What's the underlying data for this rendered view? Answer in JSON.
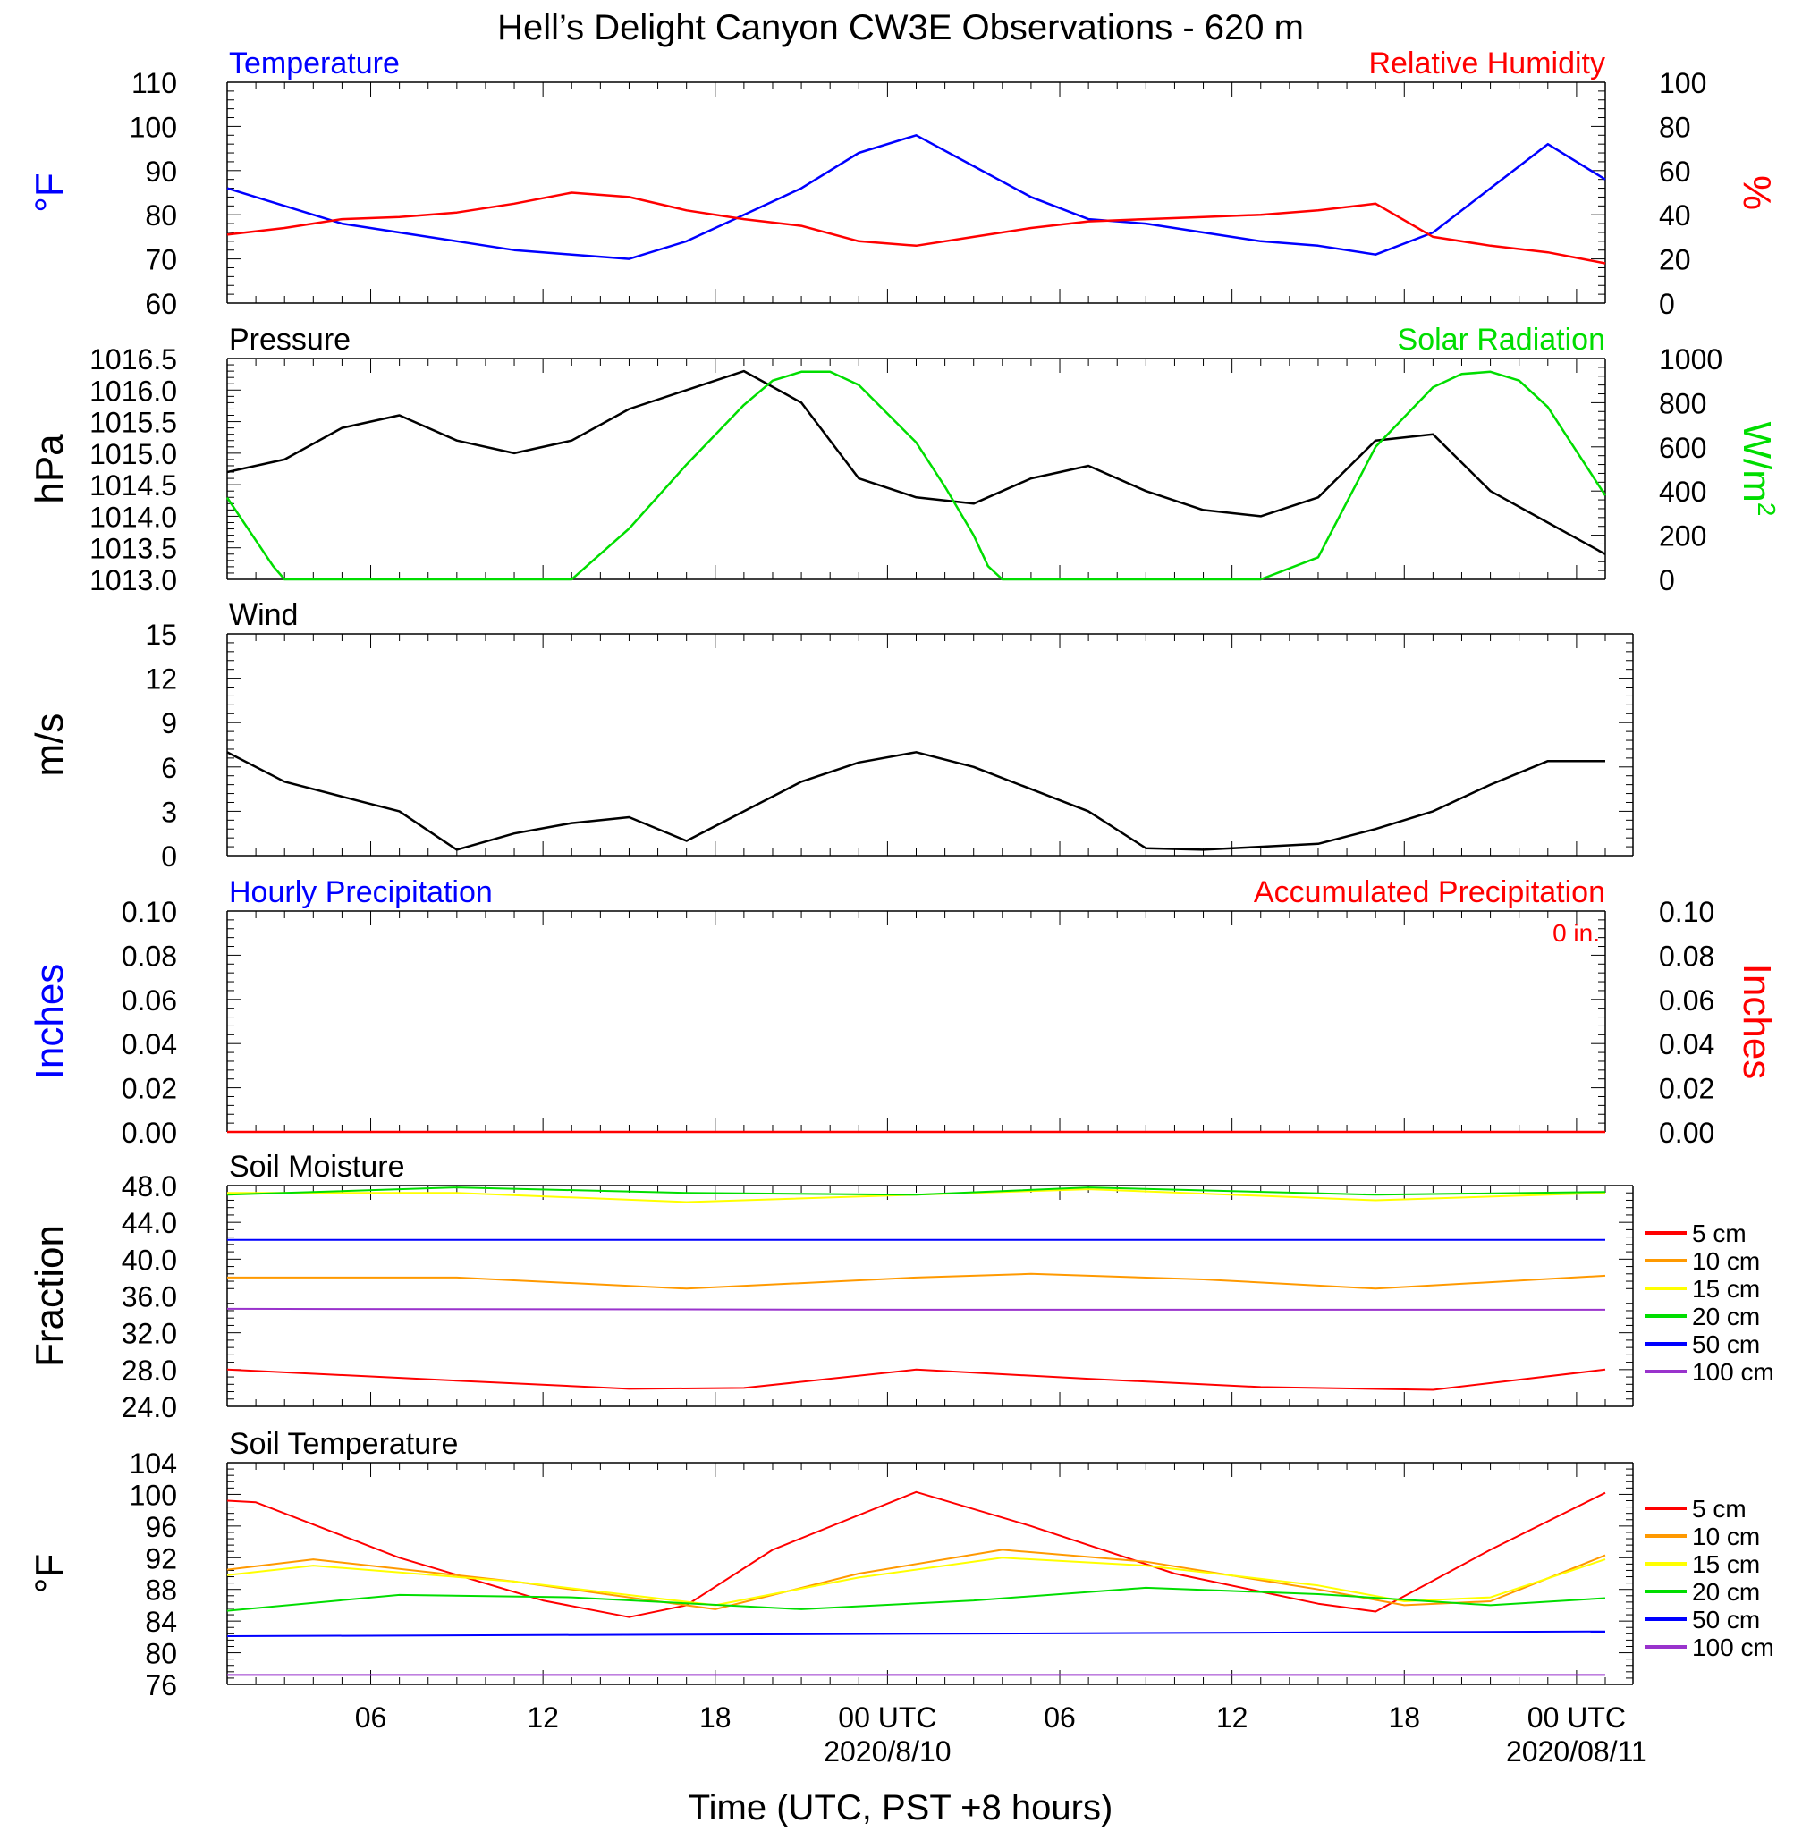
{
  "page_title": "Hell’s Delight Canyon CW3E Observations - 620 m",
  "x_axis": {
    "label": "Time (UTC, PST +8 hours)",
    "hours_range": [
      0,
      48
    ],
    "ticks": [
      {
        "hour": 5,
        "label": "06"
      },
      {
        "hour": 11,
        "label": "12"
      },
      {
        "hour": 17,
        "label": "18"
      },
      {
        "hour": 23,
        "label": "00 UTC"
      },
      {
        "hour": 29,
        "label": "06"
      },
      {
        "hour": 35,
        "label": "12"
      },
      {
        "hour": 41,
        "label": "18"
      },
      {
        "hour": 47,
        "label": "00 UTC"
      }
    ],
    "dates": [
      {
        "hour": 23,
        "label": "2020/8/10"
      },
      {
        "hour": 47,
        "label": "2020/08/11"
      }
    ]
  },
  "colors": {
    "blue": "#0000ff",
    "red": "#ff0000",
    "green": "#00dd00",
    "black": "#000000",
    "orange": "#ff9900",
    "yellow": "#ffff00",
    "purple": "#9933cc"
  },
  "soil_legend": [
    "5 cm",
    "10 cm",
    "15 cm",
    "20 cm",
    "50 cm",
    "100 cm"
  ],
  "chart_data": [
    {
      "id": "temp_rh",
      "type": "line",
      "left_title": "Temperature",
      "right_title": "Relative Humidity",
      "ylabel_left": "°F",
      "ylabel_right": "%",
      "ylim_left": [
        60,
        110
      ],
      "ylim_right": [
        0,
        100
      ],
      "yticks_left": [
        "110",
        "100",
        "90",
        "80",
        "70",
        "60"
      ],
      "yticks_right": [
        "100",
        "80",
        "60",
        "40",
        "20",
        "0"
      ],
      "series": [
        {
          "axis": "left",
          "color": "blue",
          "x": [
            0,
            2,
            4,
            6,
            8,
            10,
            12,
            14,
            16,
            18,
            20,
            22,
            24,
            26,
            28,
            30,
            32,
            34,
            36,
            38,
            40,
            42,
            44,
            46,
            48
          ],
          "y": [
            86,
            82,
            78,
            76,
            74,
            72,
            71,
            70,
            74,
            80,
            86,
            94,
            98,
            91,
            84,
            79,
            78,
            76,
            74,
            73,
            71,
            76,
            86,
            96,
            88
          ]
        },
        {
          "axis": "right",
          "color": "red",
          "x": [
            0,
            2,
            4,
            6,
            8,
            10,
            12,
            14,
            16,
            18,
            20,
            22,
            24,
            26,
            28,
            30,
            32,
            34,
            36,
            38,
            40,
            42,
            44,
            46,
            48
          ],
          "y": [
            31,
            34,
            38,
            39,
            41,
            45,
            50,
            48,
            42,
            38,
            35,
            28,
            26,
            30,
            34,
            37,
            38,
            39,
            40,
            42,
            45,
            30,
            26,
            23,
            18
          ]
        }
      ]
    },
    {
      "id": "pressure_solar",
      "type": "line",
      "left_title": "Pressure",
      "right_title": "Solar Radiation",
      "ylabel_left": "hPa",
      "ylabel_right": "W/m",
      "ylabel_right_sup": "2",
      "ylim_left": [
        1013.0,
        1016.5
      ],
      "ylim_right": [
        0,
        1000
      ],
      "yticks_left": [
        "1016.5",
        "1016.0",
        "1015.5",
        "1015.0",
        "1014.5",
        "1014.0",
        "1013.5",
        "1013.0"
      ],
      "yticks_right": [
        "1000",
        "800",
        "600",
        "400",
        "200",
        "0"
      ],
      "series": [
        {
          "axis": "left",
          "color": "black",
          "x": [
            0,
            2,
            4,
            6,
            8,
            10,
            12,
            14,
            16,
            18,
            20,
            22,
            24,
            26,
            28,
            30,
            32,
            34,
            36,
            38,
            40,
            42,
            44,
            46,
            48
          ],
          "y": [
            1014.7,
            1014.9,
            1015.4,
            1015.6,
            1015.2,
            1015.0,
            1015.2,
            1015.7,
            1016.0,
            1016.3,
            1015.8,
            1014.6,
            1014.3,
            1014.2,
            1014.6,
            1014.8,
            1014.4,
            1014.1,
            1014.0,
            1014.3,
            1015.2,
            1015.3,
            1014.4,
            1013.9,
            1013.4
          ]
        },
        {
          "axis": "right",
          "color": "green",
          "x": [
            0,
            1.6,
            2,
            12,
            14,
            16,
            18,
            19,
            20,
            21,
            22,
            24,
            25,
            26,
            26.5,
            27,
            36,
            38,
            39,
            40,
            42,
            43,
            44,
            45,
            46,
            48
          ],
          "y": [
            370,
            60,
            0,
            0,
            230,
            520,
            790,
            900,
            940,
            940,
            880,
            620,
            420,
            200,
            60,
            0,
            0,
            100,
            350,
            600,
            870,
            930,
            940,
            900,
            780,
            380
          ]
        }
      ]
    },
    {
      "id": "wind",
      "type": "line",
      "left_title": "Wind",
      "ylabel_left": "m/s",
      "ylim_left": [
        0,
        15
      ],
      "yticks_left": [
        "15",
        "12",
        "9",
        "6",
        "3",
        "0"
      ],
      "series": [
        {
          "axis": "left",
          "color": "black",
          "x": [
            0,
            2,
            4,
            6,
            8,
            10,
            12,
            14,
            16,
            18,
            20,
            22,
            24,
            26,
            28,
            30,
            32,
            34,
            36,
            38,
            40,
            42,
            44,
            46,
            48
          ],
          "y": [
            7,
            5,
            4,
            3,
            0.4,
            1.5,
            2.2,
            2.6,
            1.0,
            3.0,
            5.0,
            6.3,
            7.0,
            6.0,
            4.5,
            3.0,
            0.5,
            0.4,
            0.6,
            0.8,
            1.8,
            3.0,
            4.8,
            6.4,
            6.4
          ]
        }
      ]
    },
    {
      "id": "precip",
      "type": "line",
      "left_title": "Hourly Precipitation",
      "right_title": "Accumulated Precipitation",
      "annotation": "0 in.",
      "ylabel_left": "Inches",
      "ylabel_right": "Inches",
      "ylim_left": [
        0,
        0.1
      ],
      "ylim_right": [
        0,
        0.1
      ],
      "yticks_left": [
        "0.10",
        "0.08",
        "0.06",
        "0.04",
        "0.02",
        "0.00"
      ],
      "yticks_right": [
        "0.10",
        "0.08",
        "0.06",
        "0.04",
        "0.02",
        "0.00"
      ],
      "series": [
        {
          "axis": "left",
          "color": "red",
          "x": [
            0,
            48
          ],
          "y": [
            0,
            0
          ]
        }
      ]
    },
    {
      "id": "soil_moisture",
      "type": "line",
      "left_title": "Soil Moisture",
      "ylabel_left": "Fraction",
      "ylim_left": [
        24,
        48
      ],
      "yticks_left": [
        "48.0",
        "44.0",
        "40.0",
        "36.0",
        "32.0",
        "28.0",
        "24.0"
      ],
      "series": [
        {
          "name": "5 cm",
          "color": "red",
          "axis": "left",
          "x": [
            0,
            8,
            14,
            18,
            24,
            30,
            36,
            42,
            48
          ],
          "y": [
            28.0,
            26.8,
            25.9,
            26.0,
            28.0,
            27.0,
            26.1,
            25.8,
            28.0
          ]
        },
        {
          "name": "10 cm",
          "color": "orange",
          "axis": "left",
          "x": [
            0,
            8,
            16,
            24,
            28,
            34,
            40,
            48
          ],
          "y": [
            38.0,
            38.0,
            36.8,
            38.0,
            38.4,
            37.8,
            36.8,
            38.2
          ]
        },
        {
          "name": "15 cm",
          "color": "yellow",
          "axis": "left",
          "x": [
            0,
            8,
            16,
            24,
            30,
            40,
            48
          ],
          "y": [
            47.2,
            47.2,
            46.2,
            47.0,
            47.6,
            46.4,
            47.2
          ]
        },
        {
          "name": "20 cm",
          "color": "green",
          "axis": "left",
          "x": [
            0,
            8,
            16,
            24,
            30,
            40,
            48
          ],
          "y": [
            47.0,
            47.8,
            47.2,
            47.0,
            47.8,
            47.0,
            47.3
          ]
        },
        {
          "name": "50 cm",
          "color": "blue",
          "axis": "left",
          "x": [
            0,
            48
          ],
          "y": [
            42.1,
            42.1
          ]
        },
        {
          "name": "100 cm",
          "color": "purple",
          "axis": "left",
          "x": [
            0,
            24,
            48
          ],
          "y": [
            34.6,
            34.5,
            34.5
          ]
        }
      ]
    },
    {
      "id": "soil_temp",
      "type": "line",
      "left_title": "Soil Temperature",
      "ylabel_left": "°F",
      "ylim_left": [
        76,
        104
      ],
      "yticks_left": [
        "104",
        "100",
        "96",
        "92",
        "88",
        "84",
        "80",
        "76"
      ],
      "series": [
        {
          "name": "5 cm",
          "color": "red",
          "axis": "left",
          "x": [
            0,
            1,
            6,
            11,
            14,
            16,
            19,
            24,
            28,
            33,
            38,
            40,
            44,
            48
          ],
          "y": [
            99.2,
            99.0,
            92.0,
            86.6,
            84.5,
            86.0,
            93.0,
            100.3,
            96.0,
            90.0,
            86.2,
            85.2,
            93.0,
            100.2
          ]
        },
        {
          "name": "10 cm",
          "color": "orange",
          "axis": "left",
          "x": [
            0,
            3,
            10,
            17,
            22,
            27,
            32,
            38,
            41,
            44,
            48
          ],
          "y": [
            90.5,
            91.8,
            89.0,
            85.5,
            90.0,
            93.0,
            91.5,
            88.0,
            86.0,
            86.5,
            92.3
          ]
        },
        {
          "name": "15 cm",
          "color": "yellow",
          "axis": "left",
          "x": [
            0,
            3,
            10,
            17,
            22,
            27,
            32,
            38,
            41,
            44,
            48
          ],
          "y": [
            89.8,
            91.0,
            89.0,
            86.0,
            89.5,
            92.0,
            91.0,
            88.5,
            86.5,
            87.0,
            91.8
          ]
        },
        {
          "name": "20 cm",
          "color": "green",
          "axis": "left",
          "x": [
            0,
            6,
            12,
            20,
            26,
            32,
            38,
            44,
            48
          ],
          "y": [
            85.3,
            87.3,
            87.0,
            85.5,
            86.6,
            88.2,
            87.4,
            86.0,
            86.9
          ]
        },
        {
          "name": "50 cm",
          "color": "blue",
          "axis": "left",
          "x": [
            0,
            48
          ],
          "y": [
            82.1,
            82.7
          ]
        },
        {
          "name": "100 cm",
          "color": "purple",
          "axis": "left",
          "x": [
            0,
            48
          ],
          "y": [
            77.2,
            77.2
          ]
        }
      ]
    }
  ]
}
